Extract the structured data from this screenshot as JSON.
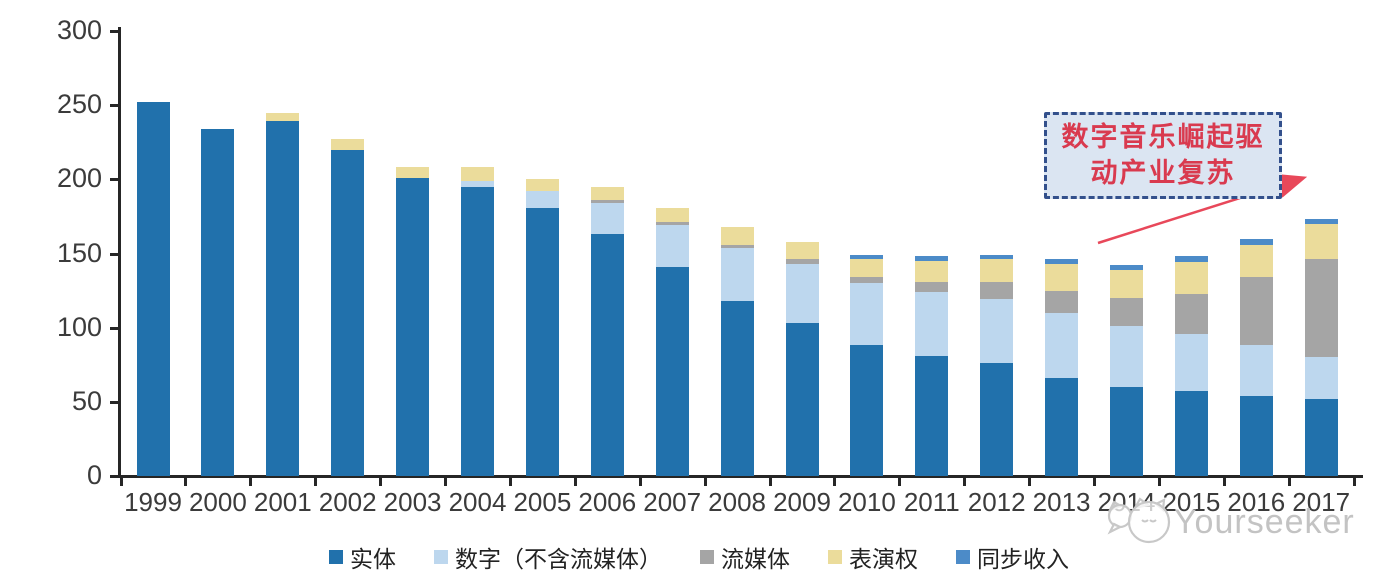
{
  "chart_data": {
    "type": "bar",
    "subtype": "stacked-vertical",
    "title": "",
    "xlabel": "",
    "ylabel": "",
    "ylim": [
      0,
      300
    ],
    "yticks": [
      0,
      50,
      100,
      150,
      200,
      250,
      300
    ],
    "grid": false,
    "legend_position": "bottom",
    "categories": [
      "1999",
      "2000",
      "2001",
      "2002",
      "2003",
      "2004",
      "2005",
      "2006",
      "2007",
      "2008",
      "2009",
      "2010",
      "2011",
      "2012",
      "2013",
      "2014",
      "2015",
      "2016",
      "2017"
    ],
    "series": [
      {
        "name": "实体",
        "color": "#2171ac",
        "values": [
          252,
          234,
          239,
          220,
          201,
          195,
          181,
          163,
          141,
          118,
          103,
          88,
          81,
          76,
          66,
          60,
          57,
          54,
          52
        ]
      },
      {
        "name": "数字（不含流媒体）",
        "color": "#bdd7ee",
        "values": [
          0,
          0,
          0,
          0,
          0,
          4,
          11,
          21,
          28,
          36,
          40,
          42,
          43,
          43,
          44,
          41,
          39,
          34,
          28
        ]
      },
      {
        "name": "流媒体",
        "color": "#a5a5a5",
        "values": [
          0,
          0,
          0,
          0,
          0,
          0,
          0,
          2,
          2,
          2,
          3,
          4,
          7,
          12,
          15,
          19,
          27,
          46,
          66
        ]
      },
      {
        "name": "表演权",
        "color": "#ebdc9b",
        "values": [
          0,
          0,
          6,
          7,
          7,
          9,
          8,
          9,
          10,
          12,
          12,
          12,
          14,
          15,
          18,
          19,
          21,
          22,
          24
        ]
      },
      {
        "name": "同步收入",
        "color": "#4c8bc8",
        "values": [
          0,
          0,
          0,
          0,
          0,
          0,
          0,
          0,
          0,
          0,
          0,
          3,
          3,
          3,
          3,
          3,
          4,
          4,
          3
        ]
      }
    ]
  },
  "annotation": {
    "line1": "数字音乐崛起驱",
    "line2": "动产业复苏",
    "text_color": "#d93a4f",
    "border_color": "#33508c",
    "fill_color": "#dbe5f2",
    "arrow_color": "#e8485a"
  },
  "axes": {
    "line_color": "#262626",
    "label_color": "#3b3b3b"
  },
  "watermark": {
    "text": "Yourseeker",
    "color": "#c3c3c3"
  }
}
